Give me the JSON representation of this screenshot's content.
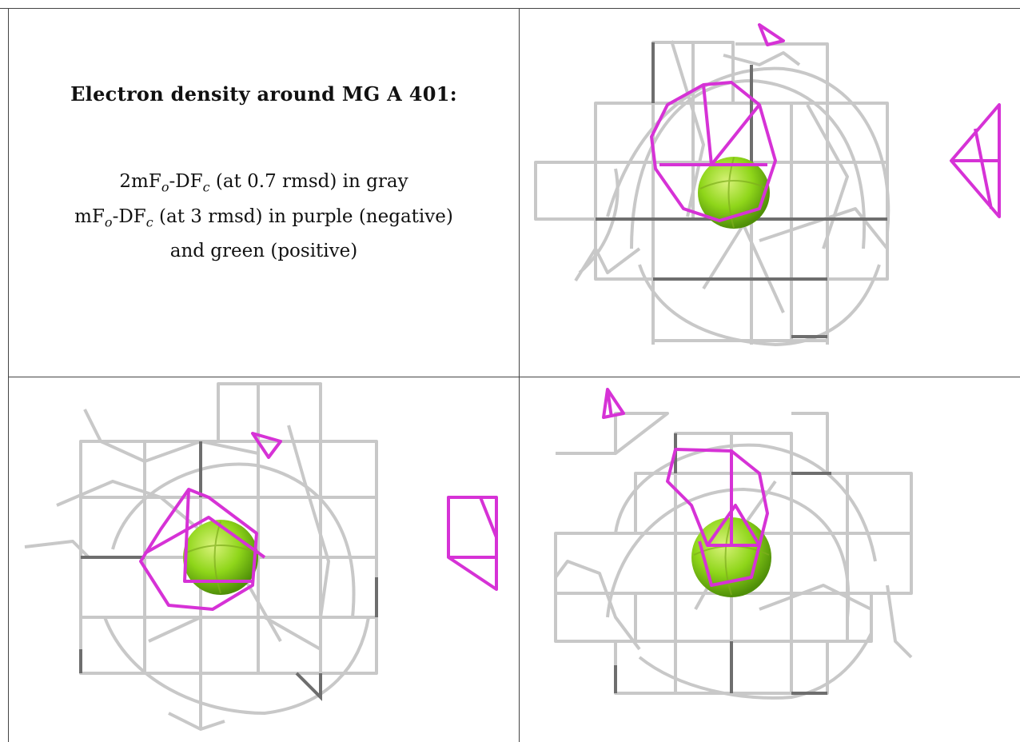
{
  "caption": {
    "title": "Electron density around MG A 401:",
    "line1_prefix": "2mF",
    "line1_sub1": "o",
    "line1_mid": "-DF",
    "line1_sub2": "c",
    "line1_suffix": " (at 0.7 rmsd) in gray",
    "line2_prefix": "mF",
    "line2_sub1": "o",
    "line2_mid": "-DF",
    "line2_sub2": "c",
    "line2_suffix": " (at 3 rmsd) in purple (negative)",
    "line3": "and green (positive)"
  },
  "colors": {
    "gray_mesh_light": "#c8c8c8",
    "gray_mesh_dark": "#6e6e6e",
    "purple_mesh": "#d632d6",
    "green_sphere": "#8fd61a",
    "border": "#444444"
  },
  "panels": [
    {
      "name": "view-top-right",
      "atom": "MG A 401"
    },
    {
      "name": "view-bottom-left",
      "atom": "MG A 401"
    },
    {
      "name": "view-bottom-right",
      "atom": "MG A 401"
    }
  ]
}
